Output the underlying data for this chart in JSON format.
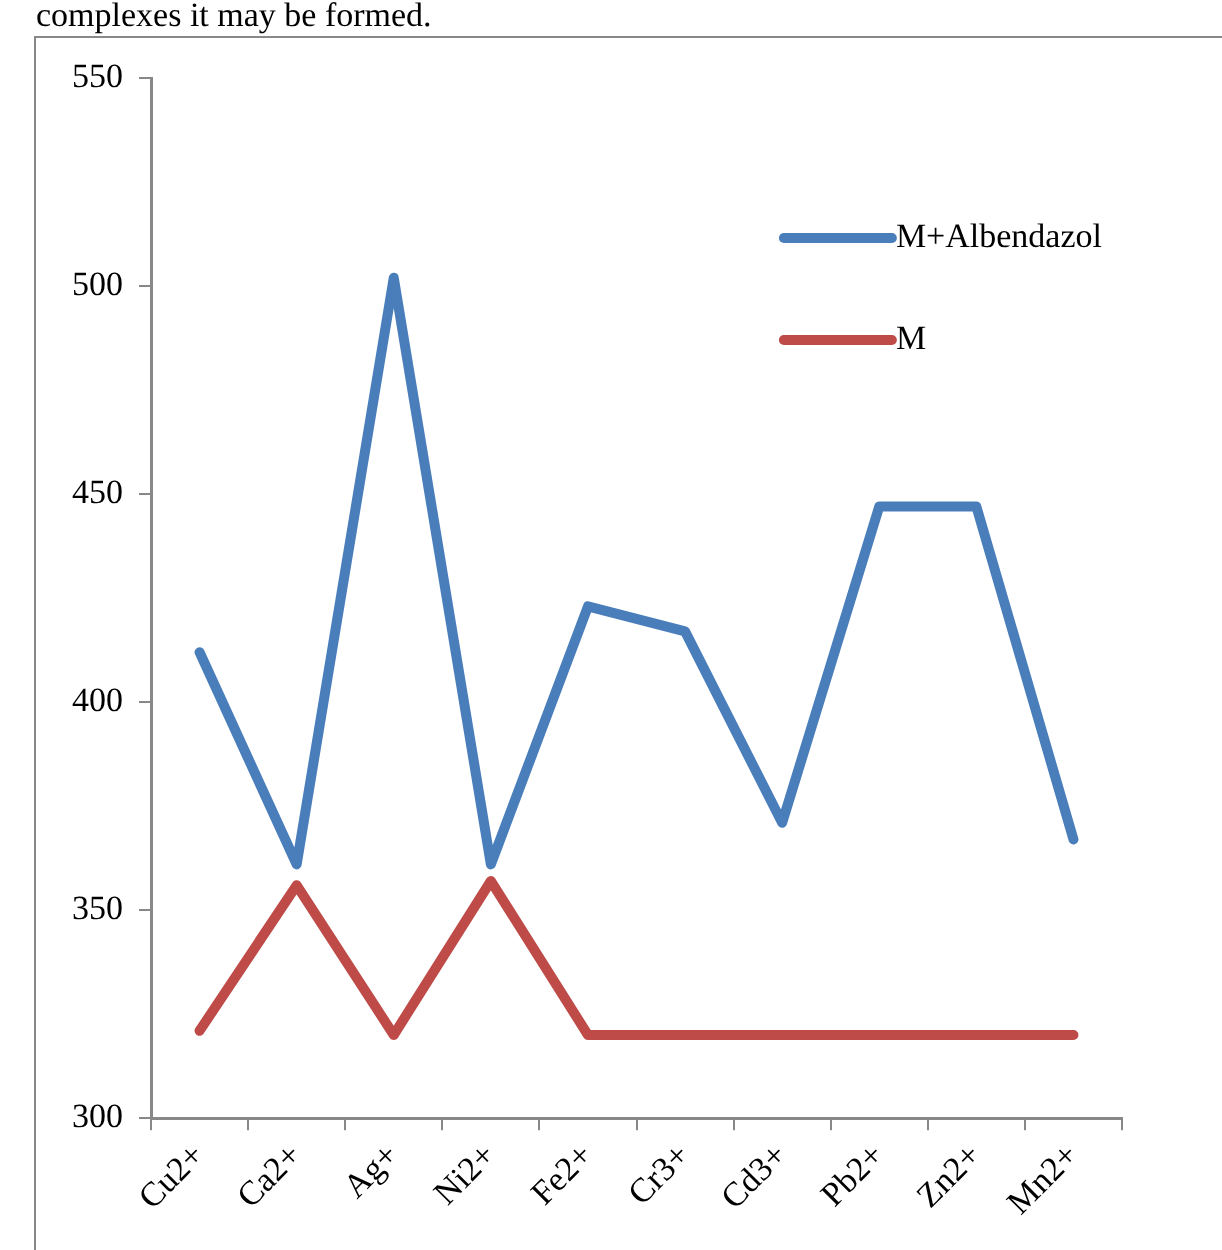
{
  "chart_data": {
    "type": "line",
    "annotations": [
      "complexes it may be formed."
    ],
    "categories": [
      "Cu2+",
      "Ca2+",
      "Ag+",
      "Ni2+",
      "Fe2+",
      "Cr3+",
      "Cd3+",
      "Pb2+",
      "Zn2+",
      "Mn2+"
    ],
    "series": [
      {
        "name": "M+Albendazol",
        "color": "#4a7ebb",
        "values": [
          412,
          361,
          502,
          361,
          423,
          417,
          371,
          447,
          447,
          367
        ]
      },
      {
        "name": "M",
        "color": "#be4b48",
        "values": [
          321,
          356,
          320,
          357,
          320,
          320,
          320,
          320,
          320,
          320
        ]
      }
    ],
    "ylim": [
      300,
      550
    ],
    "yticks": [
      300,
      350,
      400,
      450,
      500,
      550
    ],
    "grid": false,
    "legend": "top right",
    "marker": "none",
    "line_style": "solid"
  }
}
